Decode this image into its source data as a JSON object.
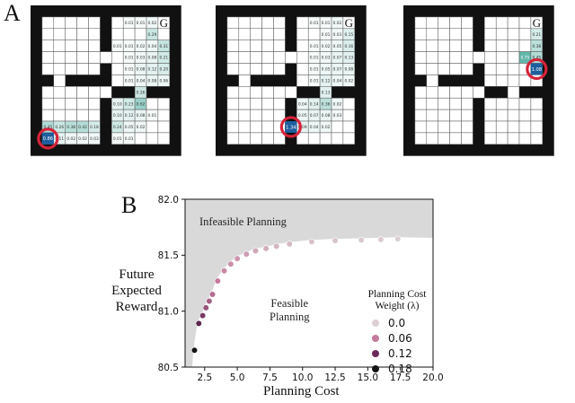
{
  "panels": {
    "a_label": "A",
    "b_label": "B"
  },
  "gridworlds": [
    {
      "name": "grid-1",
      "goal": "G",
      "agent_value": "0.86",
      "cells": [
        {
          "r": 1,
          "c": 8,
          "v": "0.01",
          "s": 0.05
        },
        {
          "r": 1,
          "c": 9,
          "v": "0.01",
          "s": 0.05
        },
        {
          "r": 1,
          "c": 10,
          "v": "0.02",
          "s": 0.08
        },
        {
          "r": 2,
          "c": 10,
          "v": "0.29",
          "s": 0.3
        },
        {
          "r": 3,
          "c": 7,
          "v": "0.01",
          "s": 0.05
        },
        {
          "r": 3,
          "c": 8,
          "v": "0.01",
          "s": 0.05
        },
        {
          "r": 3,
          "c": 9,
          "v": "0.02",
          "s": 0.08
        },
        {
          "r": 3,
          "c": 10,
          "v": "0.04",
          "s": 0.1
        },
        {
          "r": 3,
          "c": 11,
          "v": "0.31",
          "s": 0.32
        },
        {
          "r": 4,
          "c": 8,
          "v": "0.01",
          "s": 0.05
        },
        {
          "r": 4,
          "c": 9,
          "v": "0.03",
          "s": 0.08
        },
        {
          "r": 4,
          "c": 10,
          "v": "0.08",
          "s": 0.12
        },
        {
          "r": 4,
          "c": 11,
          "v": "0.21",
          "s": 0.25
        },
        {
          "r": 5,
          "c": 8,
          "v": "0.01",
          "s": 0.05
        },
        {
          "r": 5,
          "c": 9,
          "v": "0.08",
          "s": 0.12
        },
        {
          "r": 5,
          "c": 10,
          "v": "0.12",
          "s": 0.15
        },
        {
          "r": 5,
          "c": 11,
          "v": "0.20",
          "s": 0.22
        },
        {
          "r": 6,
          "c": 8,
          "v": "0.01",
          "s": 0.05
        },
        {
          "r": 6,
          "c": 9,
          "v": "0.04",
          "s": 0.1
        },
        {
          "r": 6,
          "c": 10,
          "v": "0.08",
          "s": 0.12
        },
        {
          "r": 6,
          "c": 11,
          "v": "0.06",
          "s": 0.1
        },
        {
          "r": 7,
          "c": 9,
          "v": "0.26",
          "s": 0.28
        },
        {
          "r": 8,
          "c": 7,
          "v": "0.10",
          "s": 0.14
        },
        {
          "r": 8,
          "c": 8,
          "v": "0.23",
          "s": 0.26
        },
        {
          "r": 8,
          "c": 9,
          "v": "0.62",
          "s": 0.55
        },
        {
          "r": 9,
          "c": 7,
          "v": "0.10",
          "s": 0.14
        },
        {
          "r": 9,
          "c": 8,
          "v": "0.12",
          "s": 0.15
        },
        {
          "r": 9,
          "c": 9,
          "v": "0.08",
          "s": 0.12
        },
        {
          "r": 9,
          "c": 10,
          "v": "0.01",
          "s": 0.05
        },
        {
          "r": 10,
          "c": 1,
          "v": "0.45",
          "s": 0.42
        },
        {
          "r": 10,
          "c": 2,
          "v": "0.26",
          "s": 0.28
        },
        {
          "r": 10,
          "c": 3,
          "v": "0.38",
          "s": 0.38
        },
        {
          "r": 10,
          "c": 4,
          "v": "0.42",
          "s": 0.4
        },
        {
          "r": 10,
          "c": 5,
          "v": "0.18",
          "s": 0.22
        },
        {
          "r": 10,
          "c": 6,
          "v": "0.19",
          "s": 0.22
        },
        {
          "r": 10,
          "c": 7,
          "v": "0.24",
          "s": 0.26
        },
        {
          "r": 10,
          "c": 8,
          "v": "0.05",
          "s": 0.1
        },
        {
          "r": 10,
          "c": 9,
          "v": "0.02",
          "s": 0.08
        },
        {
          "r": 11,
          "c": 2,
          "v": "0.11",
          "s": 0.14
        },
        {
          "r": 11,
          "c": 3,
          "v": "0.02",
          "s": 0.08
        },
        {
          "r": 11,
          "c": 4,
          "v": "0.02",
          "s": 0.08
        },
        {
          "r": 11,
          "c": 5,
          "v": "0.03",
          "s": 0.08
        },
        {
          "r": 11,
          "c": 7,
          "v": "0.01",
          "s": 0.05
        },
        {
          "r": 11,
          "c": 8,
          "v": "0.01",
          "s": 0.05
        }
      ]
    },
    {
      "name": "grid-2",
      "goal": "G",
      "agent_value": "1.34",
      "cells": [
        {
          "r": 1,
          "c": 8,
          "v": "0.01",
          "s": 0.05
        },
        {
          "r": 1,
          "c": 9,
          "v": "0.01",
          "s": 0.05
        },
        {
          "r": 1,
          "c": 10,
          "v": "0.02",
          "s": 0.08
        },
        {
          "r": 2,
          "c": 9,
          "v": "0.01",
          "s": 0.05
        },
        {
          "r": 2,
          "c": 10,
          "v": "0.03",
          "s": 0.08
        },
        {
          "r": 2,
          "c": 11,
          "v": "0.15",
          "s": 0.18
        },
        {
          "r": 3,
          "c": 8,
          "v": "0.01",
          "s": 0.05
        },
        {
          "r": 3,
          "c": 9,
          "v": "0.02",
          "s": 0.08
        },
        {
          "r": 3,
          "c": 10,
          "v": "0.05",
          "s": 0.1
        },
        {
          "r": 3,
          "c": 11,
          "v": "0.16",
          "s": 0.2
        },
        {
          "r": 4,
          "c": 8,
          "v": "0.01",
          "s": 0.05
        },
        {
          "r": 4,
          "c": 9,
          "v": "0.03",
          "s": 0.08
        },
        {
          "r": 4,
          "c": 10,
          "v": "0.07",
          "s": 0.12
        },
        {
          "r": 4,
          "c": 11,
          "v": "0.13",
          "s": 0.16
        },
        {
          "r": 5,
          "c": 8,
          "v": "0.01",
          "s": 0.05
        },
        {
          "r": 5,
          "c": 9,
          "v": "0.05",
          "s": 0.1
        },
        {
          "r": 5,
          "c": 10,
          "v": "0.07",
          "s": 0.12
        },
        {
          "r": 5,
          "c": 11,
          "v": "0.08",
          "s": 0.12
        },
        {
          "r": 6,
          "c": 8,
          "v": "0.01",
          "s": 0.05
        },
        {
          "r": 6,
          "c": 9,
          "v": "0.12",
          "s": 0.15
        },
        {
          "r": 6,
          "c": 10,
          "v": "0.04",
          "s": 0.1
        },
        {
          "r": 6,
          "c": 11,
          "v": "0.02",
          "s": 0.08
        },
        {
          "r": 7,
          "c": 9,
          "v": "0.13",
          "s": 0.16
        },
        {
          "r": 8,
          "c": 7,
          "v": "0.04",
          "s": 0.1
        },
        {
          "r": 8,
          "c": 8,
          "v": "0.14",
          "s": 0.17
        },
        {
          "r": 8,
          "c": 9,
          "v": "0.36",
          "s": 0.36
        },
        {
          "r": 8,
          "c": 10,
          "v": "0.02",
          "s": 0.08
        },
        {
          "r": 9,
          "c": 7,
          "v": "0.05",
          "s": 0.1
        },
        {
          "r": 9,
          "c": 8,
          "v": "0.07",
          "s": 0.12
        },
        {
          "r": 9,
          "c": 9,
          "v": "0.08",
          "s": 0.12
        },
        {
          "r": 9,
          "c": 10,
          "v": "0.03",
          "s": 0.08
        },
        {
          "r": 10,
          "c": 7,
          "v": "0.09",
          "s": 0.13
        },
        {
          "r": 10,
          "c": 8,
          "v": "0.04",
          "s": 0.1
        },
        {
          "r": 10,
          "c": 9,
          "v": "0.02",
          "s": 0.08
        }
      ]
    },
    {
      "name": "grid-3",
      "goal": "G",
      "agent_value": "1.08",
      "cells": [
        {
          "r": 2,
          "c": 11,
          "v": "0.21",
          "s": 0.24
        },
        {
          "r": 3,
          "c": 11,
          "v": "0.38",
          "s": 0.38
        },
        {
          "r": 4,
          "c": 10,
          "v": "0.75",
          "s": 0.85
        },
        {
          "r": 4,
          "c": 11,
          "v": "0.45",
          "s": 0.42
        },
        {
          "r": 5,
          "c": 11,
          "v": "0.25",
          "s": 0.27
        }
      ]
    }
  ],
  "chart_data": {
    "type": "scatter",
    "xlabel": "Planning Cost",
    "ylabel": "Future Expected Reward",
    "xlim": [
      1.0,
      20.0
    ],
    "ylim": [
      80.5,
      82.0
    ],
    "xticks": [
      "2.5",
      "5.0",
      "7.5",
      "10.0",
      "12.5",
      "15.0",
      "17.5",
      "20.0"
    ],
    "yticks": [
      "80.5",
      "81.0",
      "81.5",
      "82.0"
    ],
    "region_labels": {
      "infeasible": "Infeasible Planning",
      "feasible_line1": "Feasible",
      "feasible_line2": "Planning"
    },
    "legend": {
      "title_line1": "Planning Cost",
      "title_line2": "Weight (λ)",
      "placement": "right",
      "entries": [
        {
          "label": "0.0",
          "color": "#dcd0d4"
        },
        {
          "label": "0.06",
          "color": "#c47b9c"
        },
        {
          "label": "0.12",
          "color": "#6a2a5a"
        },
        {
          "label": "0.18",
          "color": "#141414"
        }
      ]
    },
    "points": [
      {
        "x": 1.72,
        "y": 80.65,
        "lambda": 0.18
      },
      {
        "x": 2.05,
        "y": 80.89,
        "lambda": 0.13
      },
      {
        "x": 2.35,
        "y": 80.96,
        "lambda": 0.11
      },
      {
        "x": 2.6,
        "y": 81.03,
        "lambda": 0.09
      },
      {
        "x": 2.85,
        "y": 81.09,
        "lambda": 0.08
      },
      {
        "x": 3.1,
        "y": 81.15,
        "lambda": 0.07
      },
      {
        "x": 3.5,
        "y": 81.27,
        "lambda": 0.06
      },
      {
        "x": 4.0,
        "y": 81.36,
        "lambda": 0.05
      },
      {
        "x": 4.5,
        "y": 81.42,
        "lambda": 0.045
      },
      {
        "x": 5.0,
        "y": 81.47,
        "lambda": 0.04
      },
      {
        "x": 5.7,
        "y": 81.51,
        "lambda": 0.035
      },
      {
        "x": 6.4,
        "y": 81.54,
        "lambda": 0.03
      },
      {
        "x": 7.2,
        "y": 81.56,
        "lambda": 0.025
      },
      {
        "x": 8.0,
        "y": 81.58,
        "lambda": 0.02
      },
      {
        "x": 9.0,
        "y": 81.6,
        "lambda": 0.015
      },
      {
        "x": 10.7,
        "y": 81.62,
        "lambda": 0.01
      },
      {
        "x": 12.5,
        "y": 81.63,
        "lambda": 0.008
      },
      {
        "x": 14.5,
        "y": 81.635,
        "lambda": 0.005
      },
      {
        "x": 16.0,
        "y": 81.64,
        "lambda": 0.003
      },
      {
        "x": 17.3,
        "y": 81.645,
        "lambda": 0.0
      }
    ]
  }
}
